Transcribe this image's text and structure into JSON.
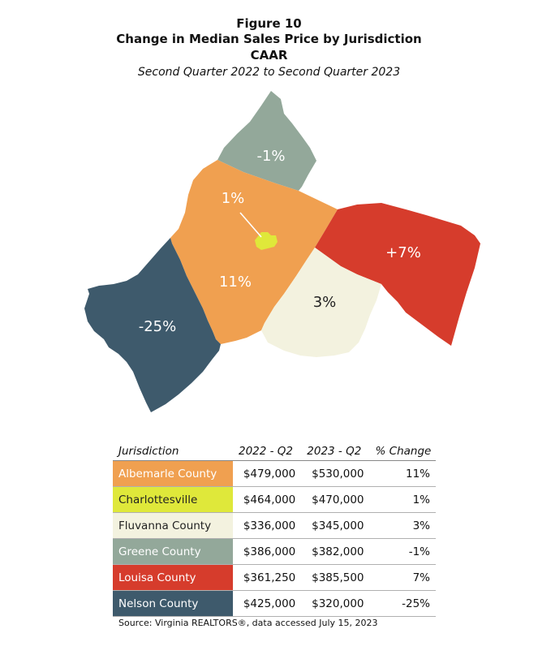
{
  "figure": {
    "label": "Figure 10",
    "title": "Change in Median Sales Price by Jurisdiction",
    "subtitle": "CAAR",
    "period": "Second Quarter 2022 to Second Quarter 2023"
  },
  "map": {
    "regions": [
      {
        "name": "Greene County",
        "label": "-1%",
        "color": "#93a89a",
        "label_color": "#ffffff"
      },
      {
        "name": "Albemarle County",
        "label": "11%",
        "color": "#f0a050",
        "label_color": "#ffffff"
      },
      {
        "name": "Charlottesville",
        "label": "1%",
        "color": "#dfe83a",
        "label_color": "#ffffff"
      },
      {
        "name": "Louisa County",
        "label": "+7%",
        "color": "#d63c2c",
        "label_color": "#ffffff"
      },
      {
        "name": "Fluvanna County",
        "label": "3%",
        "color": "#f3f2df",
        "label_color": "#222222"
      },
      {
        "name": "Nelson County",
        "label": "-25%",
        "color": "#3e5a6c",
        "label_color": "#ffffff"
      }
    ]
  },
  "table": {
    "headers": [
      "Jurisdiction",
      "2022 - Q2",
      "2023 - Q2",
      "% Change"
    ],
    "rows": [
      {
        "name": "Albemarle County",
        "q2_2022": "$479,000",
        "q2_2023": "$530,000",
        "change": "11%",
        "color": "#f0a050",
        "text_color": "#ffffff"
      },
      {
        "name": "Charlottesville",
        "q2_2022": "$464,000",
        "q2_2023": "$470,000",
        "change": "1%",
        "color": "#dfe83a",
        "text_color": "#222222"
      },
      {
        "name": "Fluvanna County",
        "q2_2022": "$336,000",
        "q2_2023": "$345,000",
        "change": "3%",
        "color": "#f3f2df",
        "text_color": "#222222"
      },
      {
        "name": "Greene County",
        "q2_2022": "$386,000",
        "q2_2023": "$382,000",
        "change": "-1%",
        "color": "#93a89a",
        "text_color": "#ffffff"
      },
      {
        "name": "Louisa County",
        "q2_2022": "$361,250",
        "q2_2023": "$385,500",
        "change": "7%",
        "color": "#d63c2c",
        "text_color": "#ffffff"
      },
      {
        "name": "Nelson County",
        "q2_2022": "$425,000",
        "q2_2023": "$320,000",
        "change": "-25%",
        "color": "#3e5a6c",
        "text_color": "#ffffff"
      }
    ]
  },
  "source": "Source: Virginia REALTORS®, data accessed July 15, 2023"
}
